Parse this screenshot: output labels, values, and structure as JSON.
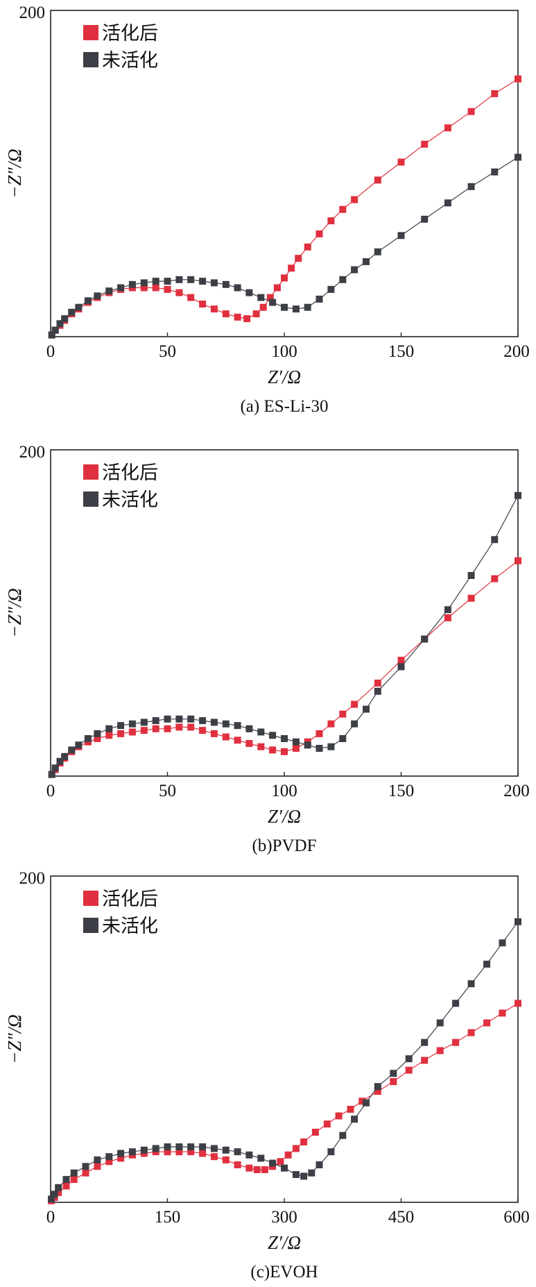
{
  "chart_data": [
    {
      "type": "scatter",
      "caption": "(a) ES-Li-30",
      "xlabel": "Z′/Ω",
      "ylabel": "−Z″/Ω",
      "xlim": [
        0,
        200
      ],
      "ylim": [
        0,
        200
      ],
      "xticks": [
        "0",
        "50",
        "100",
        "150",
        "200"
      ],
      "yticks": [
        "200"
      ],
      "legend_position": "top-left",
      "series": [
        {
          "name": "活化后",
          "color": "#e0303f",
          "x": [
            0.5,
            2,
            4,
            6,
            9,
            12,
            16,
            20,
            25,
            30,
            35,
            40,
            45,
            50,
            55,
            60,
            65,
            70,
            75,
            80,
            84,
            88,
            91,
            94,
            97,
            100,
            103,
            106,
            110,
            115,
            120,
            125,
            130,
            140,
            150,
            160,
            170,
            180,
            190,
            200
          ],
          "y": [
            1,
            4,
            7,
            10,
            14,
            17,
            21,
            24,
            27,
            29,
            30,
            30,
            30,
            29,
            27,
            24,
            20,
            17,
            14,
            12,
            11,
            14,
            18,
            24,
            30,
            36,
            42,
            48,
            55,
            63,
            71,
            78,
            84,
            96,
            107,
            118,
            128,
            138,
            149,
            158
          ]
        },
        {
          "name": "未活化",
          "color": "#3d3f46",
          "x": [
            0.5,
            2,
            4,
            6,
            9,
            12,
            16,
            20,
            25,
            30,
            35,
            40,
            45,
            50,
            55,
            60,
            65,
            70,
            75,
            80,
            85,
            90,
            95,
            100,
            105,
            110,
            115,
            120,
            125,
            130,
            135,
            140,
            150,
            160,
            170,
            180,
            190,
            200
          ],
          "y": [
            1,
            4,
            8,
            11,
            15,
            18,
            22,
            25,
            28,
            30,
            32,
            33,
            34,
            34,
            35,
            35,
            34,
            33,
            32,
            30,
            27,
            24,
            21,
            18,
            17,
            18,
            23,
            29,
            35,
            41,
            46,
            52,
            62,
            72,
            82,
            92,
            101,
            110
          ]
        }
      ]
    },
    {
      "type": "scatter",
      "caption": "(b)PVDF",
      "xlabel": "Z′/Ω",
      "ylabel": "−Z″/Ω",
      "xlim": [
        0,
        200
      ],
      "ylim": [
        0,
        200
      ],
      "xticks": [
        "0",
        "50",
        "100",
        "150",
        "200"
      ],
      "yticks": [
        "200"
      ],
      "legend_position": "top-left",
      "series": [
        {
          "name": "活化后",
          "color": "#e0303f",
          "x": [
            0.5,
            2,
            4,
            6,
            9,
            12,
            16,
            20,
            25,
            30,
            35,
            40,
            45,
            50,
            55,
            60,
            65,
            70,
            75,
            80,
            85,
            90,
            95,
            100,
            105,
            110,
            115,
            120,
            125,
            130,
            140,
            150,
            160,
            170,
            180,
            190,
            200
          ],
          "y": [
            1,
            4,
            8,
            11,
            15,
            18,
            21,
            23,
            25,
            26,
            27,
            28,
            29,
            29,
            30,
            30,
            28,
            26,
            24,
            22,
            20,
            18,
            16,
            15,
            17,
            21,
            26,
            32,
            38,
            44,
            57,
            71,
            84,
            97,
            109,
            121,
            132
          ]
        },
        {
          "name": "未活化",
          "color": "#3d3f46",
          "x": [
            0.5,
            2,
            4,
            6,
            9,
            12,
            16,
            20,
            25,
            30,
            35,
            40,
            45,
            50,
            55,
            60,
            65,
            70,
            75,
            80,
            85,
            90,
            95,
            100,
            105,
            110,
            115,
            120,
            125,
            130,
            135,
            140,
            150,
            160,
            170,
            180,
            190,
            200
          ],
          "y": [
            1,
            5,
            9,
            12,
            16,
            19,
            23,
            26,
            29,
            31,
            32,
            33,
            34,
            35,
            35,
            35,
            34,
            33,
            32,
            31,
            29,
            27,
            25,
            23,
            21,
            19,
            17,
            18,
            23,
            32,
            41,
            52,
            67,
            84,
            102,
            123,
            145,
            172
          ]
        }
      ]
    },
    {
      "type": "scatter",
      "caption": "(c)EVOH",
      "xlabel": "Z′/Ω",
      "ylabel": "−Z″/Ω",
      "xlim": [
        0,
        600
      ],
      "ylim": [
        0,
        200
      ],
      "xticks": [
        "0",
        "150",
        "300",
        "450",
        "600"
      ],
      "yticks": [
        "200"
      ],
      "legend_position": "top-left",
      "series": [
        {
          "name": "活化后",
          "color": "#e0303f",
          "x": [
            1,
            5,
            10,
            20,
            30,
            45,
            60,
            75,
            90,
            105,
            120,
            135,
            150,
            165,
            180,
            195,
            210,
            225,
            240,
            255,
            265,
            275,
            285,
            295,
            305,
            315,
            325,
            340,
            355,
            370,
            385,
            400,
            420,
            440,
            460,
            480,
            500,
            520,
            540,
            560,
            580,
            600
          ],
          "y": [
            1,
            3,
            6,
            10,
            14,
            18,
            22,
            25,
            27,
            29,
            30,
            31,
            31,
            31,
            31,
            30,
            28,
            26,
            23,
            21,
            20,
            20,
            22,
            25,
            29,
            33,
            37,
            43,
            48,
            53,
            57,
            62,
            68,
            74,
            81,
            87,
            93,
            98,
            104,
            110,
            116,
            122
          ]
        },
        {
          "name": "未活化",
          "color": "#3d3f46",
          "x": [
            1,
            5,
            10,
            20,
            30,
            45,
            60,
            75,
            90,
            105,
            120,
            135,
            150,
            165,
            180,
            195,
            210,
            225,
            240,
            255,
            270,
            285,
            300,
            315,
            325,
            335,
            345,
            360,
            375,
            390,
            405,
            420,
            440,
            460,
            480,
            500,
            520,
            540,
            560,
            580,
            600
          ],
          "y": [
            2,
            5,
            9,
            14,
            18,
            22,
            26,
            28,
            30,
            31,
            32,
            33,
            34,
            34,
            34,
            34,
            33,
            32,
            31,
            29,
            27,
            24,
            21,
            17,
            16,
            18,
            23,
            31,
            41,
            51,
            61,
            71,
            79,
            88,
            98,
            110,
            122,
            134,
            146,
            159,
            172
          ]
        }
      ]
    }
  ]
}
